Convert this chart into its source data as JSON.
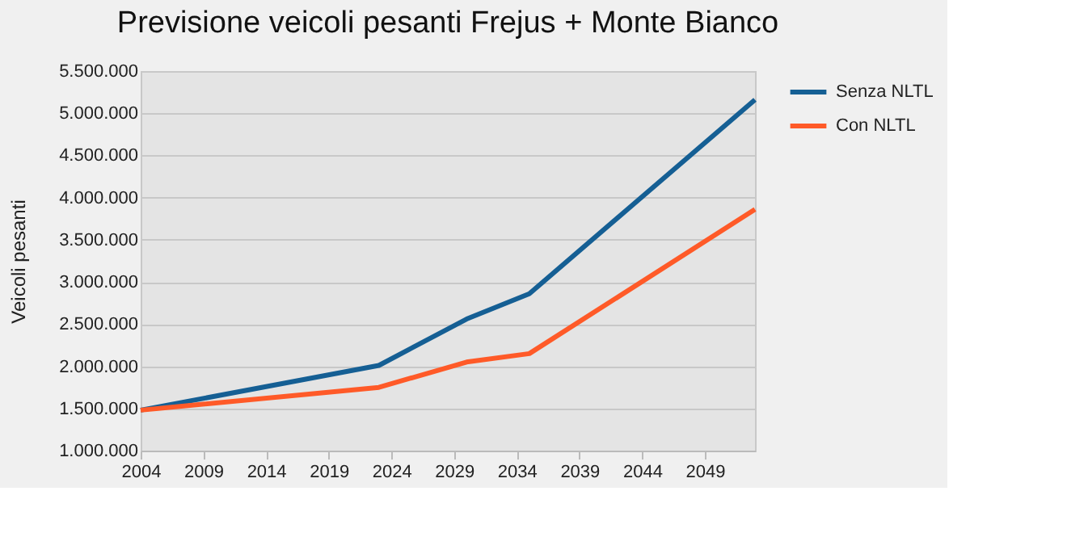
{
  "chart_data": {
    "type": "line",
    "title": "Previsione veicoli pesanti Frejus + Monte Bianco",
    "ylabel": "Veicoli   pesanti",
    "series": [
      {
        "name": "Senza  NLTL",
        "color": "#155f94",
        "x": [
          2004,
          2023,
          2030,
          2035,
          2053
        ],
        "values": [
          1480000,
          2010000,
          2560000,
          2860000,
          5160000
        ]
      },
      {
        "name": "Con  NLTL",
        "color": "#ff5a28",
        "x": [
          2004,
          2023,
          2030,
          2035,
          2053
        ],
        "values": [
          1480000,
          1750000,
          2050000,
          2150000,
          3860000
        ]
      }
    ],
    "xlim": [
      2004,
      2053
    ],
    "xticks": [
      2004,
      2009,
      2014,
      2019,
      2024,
      2029,
      2034,
      2039,
      2044,
      2049
    ],
    "ylim": [
      1000000,
      5500000
    ],
    "yticks": [
      {
        "value": 1000000,
        "label": "1.000.000"
      },
      {
        "value": 1500000,
        "label": "1.500.000"
      },
      {
        "value": 2000000,
        "label": "2.000.000"
      },
      {
        "value": 2500000,
        "label": "2.500.000"
      },
      {
        "value": 3000000,
        "label": "3.000.000"
      },
      {
        "value": 3500000,
        "label": "3.500.000"
      },
      {
        "value": 4000000,
        "label": "4.000.000"
      },
      {
        "value": 4500000,
        "label": "4.500.000"
      },
      {
        "value": 5000000,
        "label": "5.000.000"
      },
      {
        "value": 5500000,
        "label": "5.500.000"
      }
    ],
    "grid": "y",
    "legend": "right",
    "marker": "none",
    "line_style": "solid"
  }
}
